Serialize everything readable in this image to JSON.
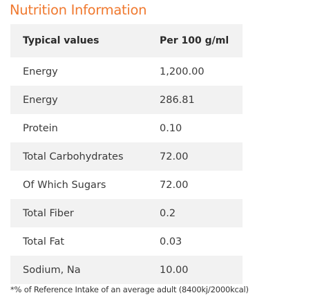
{
  "title": "Nutrition Information",
  "table": {
    "headers": [
      "Typical values",
      "Per 100 g/ml"
    ],
    "rows": [
      {
        "name": "Energy",
        "value": "1,200.00"
      },
      {
        "name": "Energy",
        "value": "286.81"
      },
      {
        "name": "Protein",
        "value": "0.10"
      },
      {
        "name": "Total Carbohydrates",
        "value": "72.00"
      },
      {
        "name": "Of Which Sugars",
        "value": "72.00"
      },
      {
        "name": "Total Fiber",
        "value": "0.2"
      },
      {
        "name": "Total Fat",
        "value": "0.03"
      },
      {
        "name": "Sodium, Na",
        "value": "10.00"
      }
    ]
  },
  "footnote": "*% of Reference Intake of an average adult (8400kj/2000kcal)",
  "colors": {
    "title": "#f0792f",
    "row_shade": "#f2f2f2",
    "text": "#333333"
  }
}
